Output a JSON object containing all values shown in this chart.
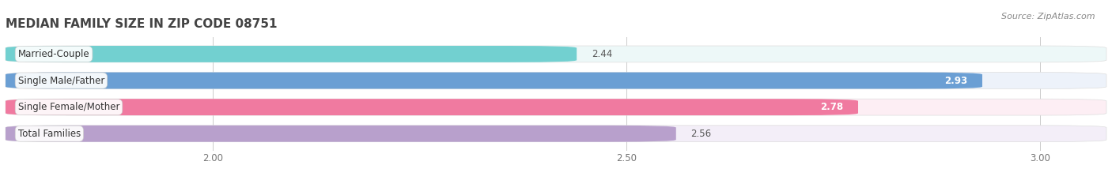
{
  "title": "MEDIAN FAMILY SIZE IN ZIP CODE 08751",
  "source": "Source: ZipAtlas.com",
  "categories": [
    "Married-Couple",
    "Single Male/Father",
    "Single Female/Mother",
    "Total Families"
  ],
  "values": [
    2.44,
    2.93,
    2.78,
    2.56
  ],
  "bar_colors": [
    "#72d0d0",
    "#6b9fd4",
    "#f07aa0",
    "#b8a0cc"
  ],
  "bar_bg_colors": [
    "#edf8f8",
    "#edf2fa",
    "#fdeef4",
    "#f3eef8"
  ],
  "xlim_data": [
    1.75,
    3.08
  ],
  "xaxis_min": 1.75,
  "xticks": [
    2.0,
    2.5,
    3.0
  ],
  "xtick_labels": [
    "2.00",
    "2.50",
    "3.00"
  ],
  "title_fontsize": 11,
  "label_fontsize": 8.5,
  "value_fontsize": 8.5,
  "source_fontsize": 8,
  "bg_color": "#ffffff",
  "plot_bg_color": "#f7f7f7"
}
